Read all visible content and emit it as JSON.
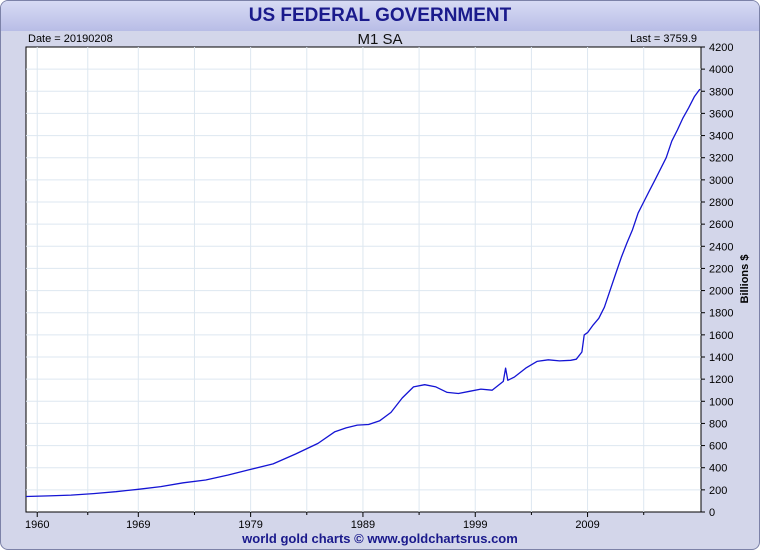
{
  "header": {
    "title": "US FEDERAL GOVERNMENT",
    "date_label": "Date = 20190208",
    "series_title": "M1 SA",
    "last_label": "Last = 3759.9"
  },
  "footer": {
    "credit": "world gold charts © www.goldchartsrus.com"
  },
  "colors": {
    "line": "#1414d4",
    "title": "#1a1a8c",
    "grid": "#dde7f0",
    "panel": "#d3d6ea"
  },
  "chart_data": {
    "type": "line",
    "title": "M1 SA",
    "ylabel": "Billions $",
    "xlim": [
      1959.0,
      2019.1
    ],
    "ylim": [
      0,
      4200
    ],
    "x_ticks": [
      1960,
      1969,
      1979,
      1989,
      1999,
      2009
    ],
    "x_tick_labels": [
      "1960",
      "1969",
      "1979",
      "1989",
      "1999",
      "2009"
    ],
    "y_ticks": [
      0,
      200,
      400,
      600,
      800,
      1000,
      1200,
      1400,
      1600,
      1800,
      2000,
      2200,
      2400,
      2600,
      2800,
      3000,
      3200,
      3400,
      3600,
      3800,
      4000,
      4200
    ],
    "y_tick_labels": [
      "0",
      "200",
      "400",
      "600",
      "800",
      "1000",
      "1200",
      "1400",
      "1600",
      "1800",
      "2000",
      "2200",
      "2400",
      "2600",
      "2800",
      "3000",
      "3200",
      "3400",
      "3600",
      "3800",
      "4000",
      "4200"
    ],
    "grid": true,
    "series": [
      {
        "name": "M1 SA",
        "x": [
          1959.0,
          1961,
          1963,
          1965,
          1967,
          1969,
          1971,
          1973,
          1975,
          1977,
          1979,
          1981,
          1983,
          1985,
          1986.5,
          1987.5,
          1988.5,
          1989.5,
          1990.5,
          1991.5,
          1992.5,
          1993.5,
          1994.5,
          1995.5,
          1996.5,
          1997.5,
          1998.5,
          1999.5,
          2000.5,
          2001.5,
          2001.7,
          2001.9,
          2002.5,
          2003.5,
          2004.5,
          2005.5,
          2006.5,
          2007.5,
          2008.0,
          2008.5,
          2008.7,
          2009.0,
          2009.5,
          2010.0,
          2010.5,
          2011.0,
          2011.5,
          2012.0,
          2012.5,
          2013.0,
          2013.5,
          2014.0,
          2014.5,
          2015.0,
          2015.5,
          2016.0,
          2016.5,
          2017.0,
          2017.5,
          2018.0,
          2018.5,
          2019.0
        ],
        "y": [
          140,
          145,
          153,
          166,
          183,
          205,
          229,
          264,
          289,
          334,
          385,
          434,
          524,
          620,
          725,
          760,
          785,
          790,
          825,
          900,
          1030,
          1130,
          1150,
          1130,
          1080,
          1070,
          1090,
          1110,
          1100,
          1180,
          1300,
          1190,
          1220,
          1300,
          1360,
          1375,
          1365,
          1370,
          1380,
          1445,
          1600,
          1620,
          1690,
          1750,
          1850,
          2000,
          2150,
          2300,
          2430,
          2550,
          2700,
          2800,
          2900,
          3000,
          3100,
          3200,
          3350,
          3450,
          3560,
          3650,
          3750,
          3820
        ]
      }
    ]
  }
}
